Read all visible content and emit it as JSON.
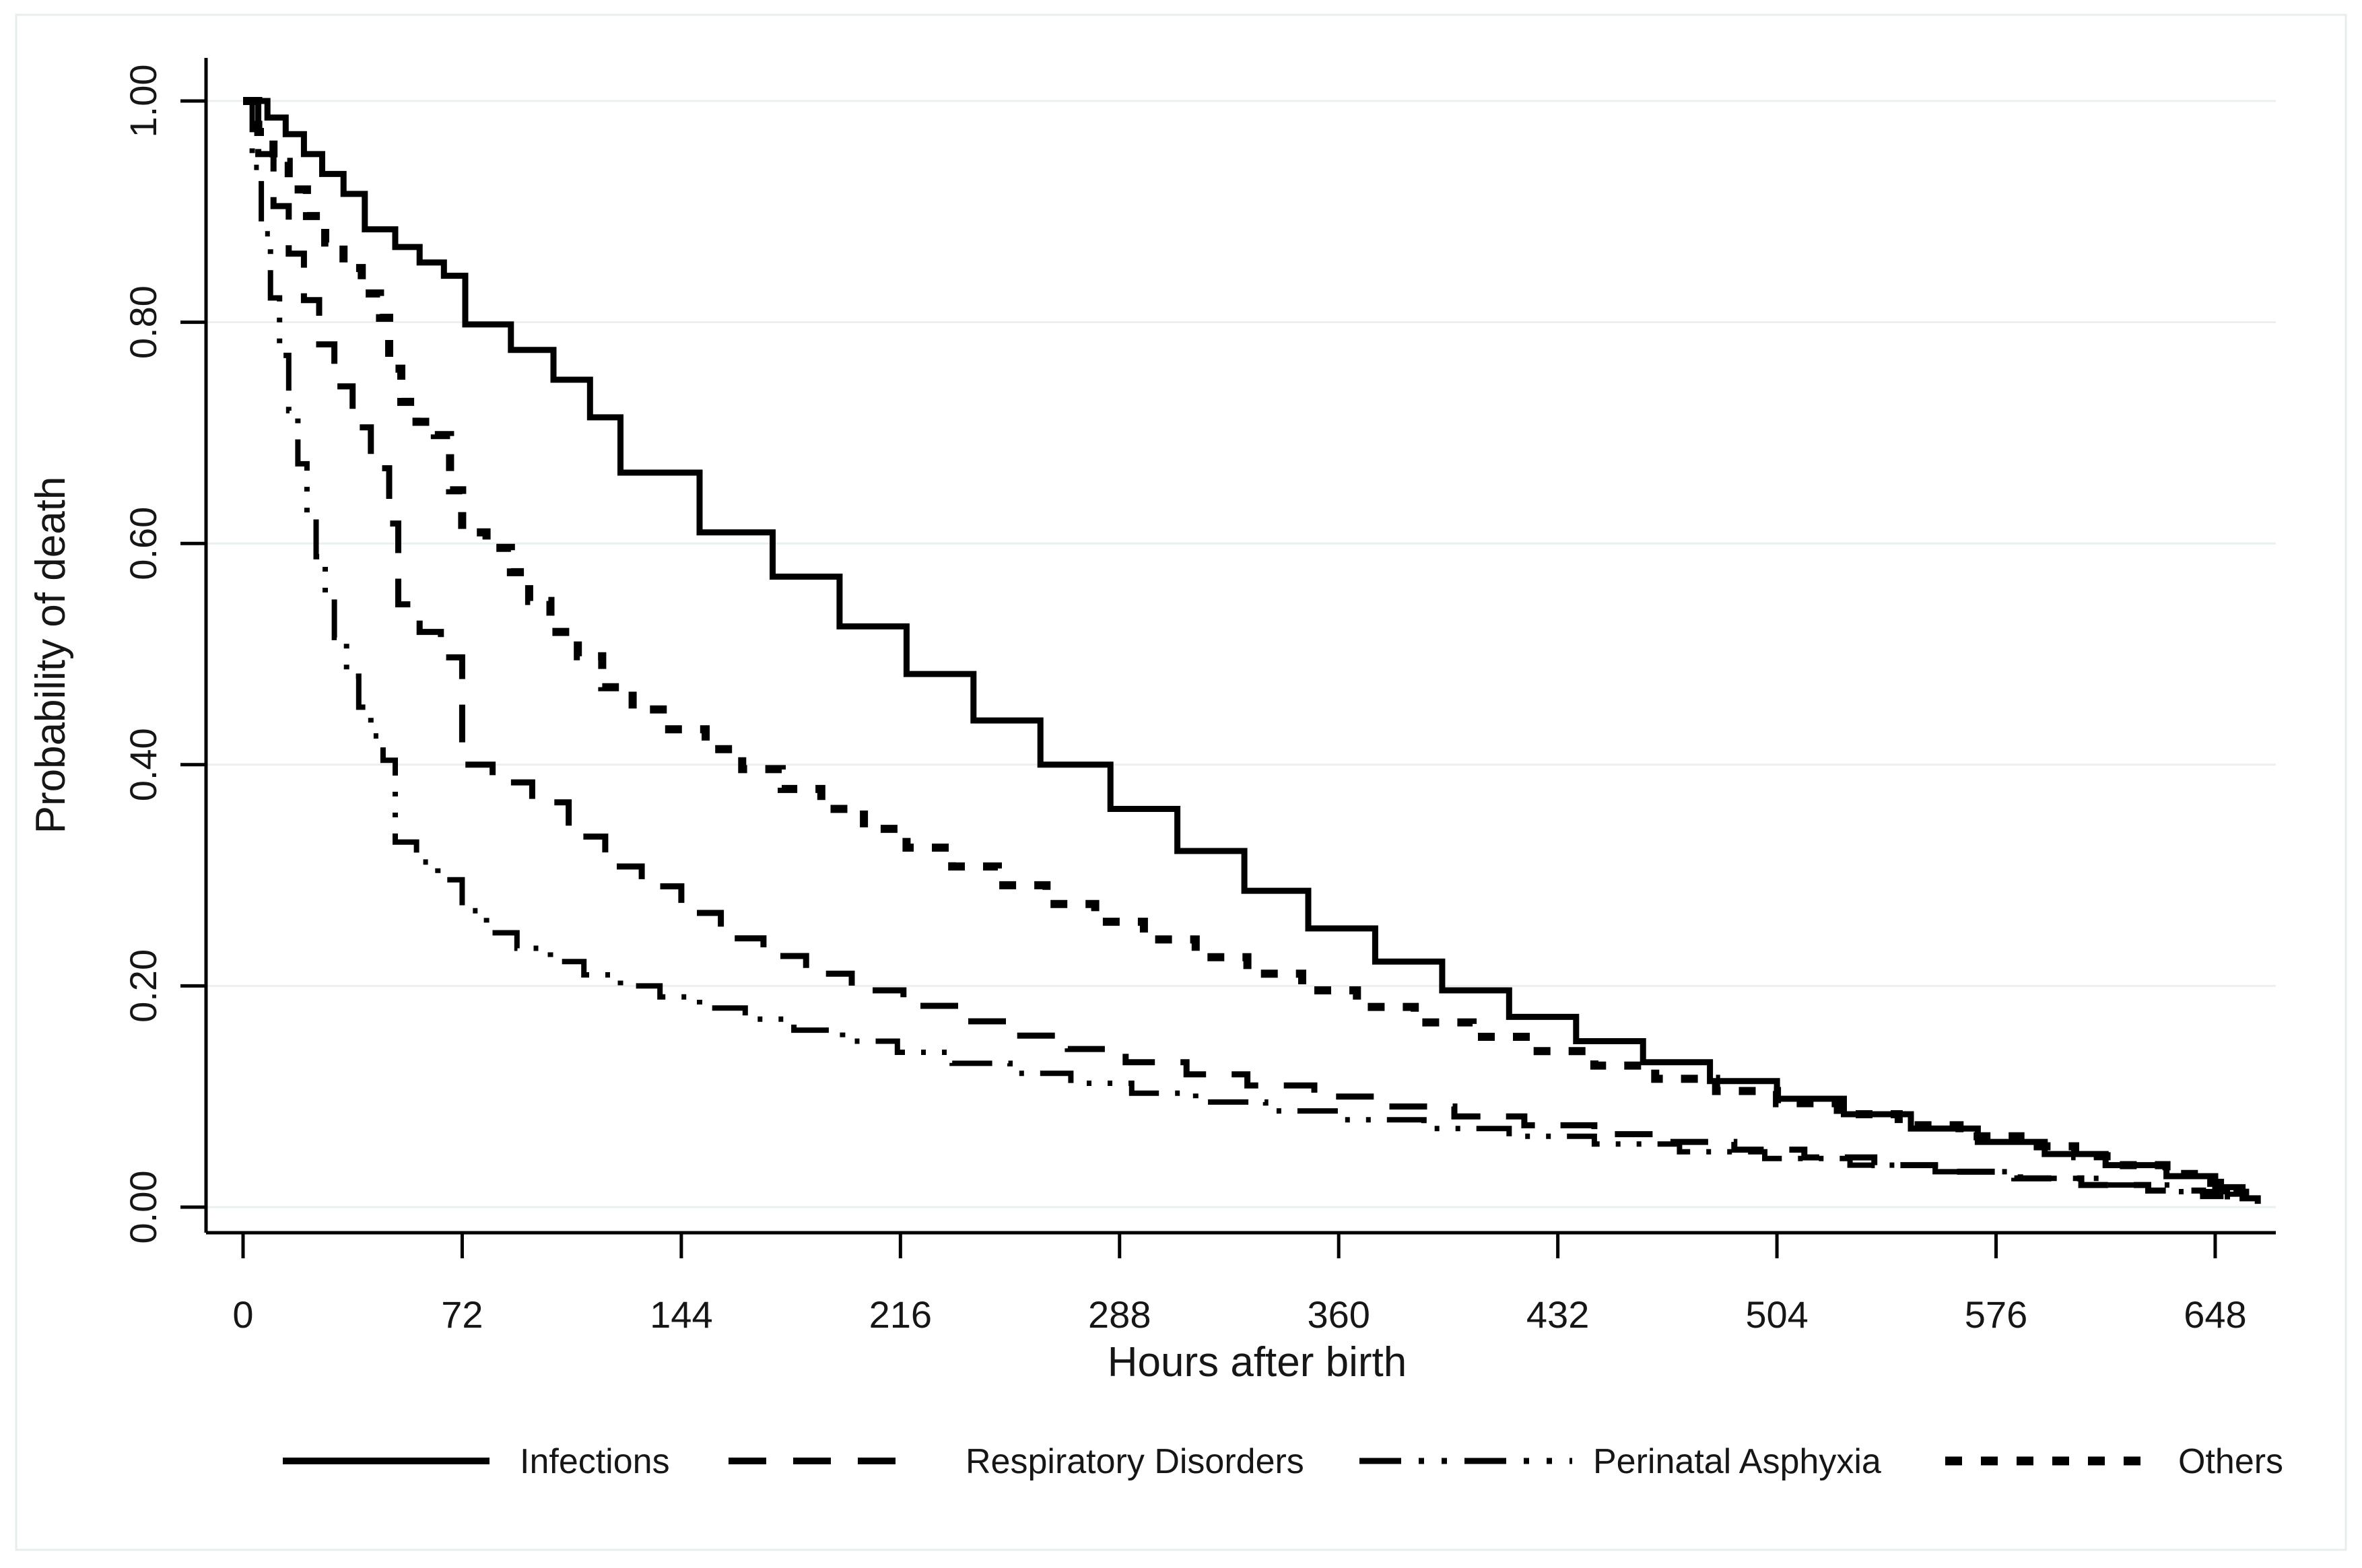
{
  "figure": {
    "background_color": "#ffffff",
    "border_color": "#e7edec"
  },
  "chart_data": {
    "type": "line",
    "subtype": "survival-step-curves",
    "title": "",
    "xlabel": "Hours after birth",
    "ylabel": "Probability of death",
    "x_ticks": [
      0,
      72,
      144,
      216,
      288,
      360,
      432,
      504,
      576,
      648
    ],
    "y_ticks": [
      {
        "label": "0.00",
        "value": 0.0
      },
      {
        "label": "0.20",
        "value": 0.2
      },
      {
        "label": "0.40",
        "value": 0.4
      },
      {
        "label": "0.60",
        "value": 0.6
      },
      {
        "label": "0.80",
        "value": 0.8
      },
      {
        "label": "1.00",
        "value": 1.0
      }
    ],
    "xlim": [
      0,
      668
    ],
    "ylim": [
      0.0,
      1.0
    ],
    "grid": "horizontal",
    "grid_color": "#e9f0ee",
    "line_color": "#000000",
    "legend_position": "bottom",
    "series": [
      {
        "name": "Infections",
        "pattern": "solid",
        "points": [
          [
            0,
            1.0
          ],
          [
            8,
            0.985
          ],
          [
            14,
            0.97
          ],
          [
            20,
            0.952
          ],
          [
            26,
            0.934
          ],
          [
            33,
            0.916
          ],
          [
            40,
            0.884
          ],
          [
            50,
            0.868
          ],
          [
            58,
            0.854
          ],
          [
            66,
            0.842
          ],
          [
            73,
            0.798
          ],
          [
            88,
            0.775
          ],
          [
            102,
            0.748
          ],
          [
            114,
            0.714
          ],
          [
            124,
            0.664
          ],
          [
            150,
            0.61
          ],
          [
            174,
            0.57
          ],
          [
            196,
            0.525
          ],
          [
            218,
            0.482
          ],
          [
            240,
            0.44
          ],
          [
            262,
            0.4
          ],
          [
            285,
            0.36
          ],
          [
            307,
            0.322
          ],
          [
            329,
            0.286
          ],
          [
            350,
            0.252
          ],
          [
            372,
            0.222
          ],
          [
            394,
            0.196
          ],
          [
            416,
            0.172
          ],
          [
            438,
            0.15
          ],
          [
            460,
            0.131
          ],
          [
            482,
            0.114
          ],
          [
            504,
            0.098
          ],
          [
            526,
            0.084
          ],
          [
            548,
            0.071
          ],
          [
            570,
            0.059
          ],
          [
            592,
            0.048
          ],
          [
            612,
            0.038
          ],
          [
            632,
            0.028
          ],
          [
            648,
            0.018
          ],
          [
            657,
            0.008
          ],
          [
            662,
            0.003
          ]
        ]
      },
      {
        "name": "Respiratory Disorders",
        "pattern": "long-dash",
        "points": [
          [
            0,
            1.0
          ],
          [
            5,
            0.952
          ],
          [
            10,
            0.905
          ],
          [
            15,
            0.862
          ],
          [
            20,
            0.82
          ],
          [
            25,
            0.78
          ],
          [
            30,
            0.742
          ],
          [
            36,
            0.705
          ],
          [
            42,
            0.668
          ],
          [
            48,
            0.618
          ],
          [
            51,
            0.545
          ],
          [
            58,
            0.52
          ],
          [
            65,
            0.497
          ],
          [
            72,
            0.4
          ],
          [
            82,
            0.384
          ],
          [
            95,
            0.366
          ],
          [
            107,
            0.335
          ],
          [
            119,
            0.308
          ],
          [
            131,
            0.29
          ],
          [
            144,
            0.266
          ],
          [
            157,
            0.243
          ],
          [
            171,
            0.227
          ],
          [
            185,
            0.211
          ],
          [
            200,
            0.196
          ],
          [
            217,
            0.182
          ],
          [
            235,
            0.168
          ],
          [
            253,
            0.155
          ],
          [
            271,
            0.143
          ],
          [
            290,
            0.131
          ],
          [
            310,
            0.12
          ],
          [
            330,
            0.11
          ],
          [
            352,
            0.1
          ],
          [
            375,
            0.091
          ],
          [
            398,
            0.082
          ],
          [
            421,
            0.074
          ],
          [
            444,
            0.066
          ],
          [
            467,
            0.059
          ],
          [
            490,
            0.052
          ],
          [
            513,
            0.045
          ],
          [
            536,
            0.038
          ],
          [
            559,
            0.032
          ],
          [
            582,
            0.026
          ],
          [
            604,
            0.02
          ],
          [
            626,
            0.015
          ],
          [
            644,
            0.01
          ],
          [
            656,
            0.004
          ]
        ]
      },
      {
        "name": "Perinatal Asphyxia",
        "pattern": "dash-dot-dot",
        "points": [
          [
            0,
            1.0
          ],
          [
            3,
            0.94
          ],
          [
            6,
            0.88
          ],
          [
            9,
            0.822
          ],
          [
            12,
            0.77
          ],
          [
            15,
            0.72
          ],
          [
            18,
            0.672
          ],
          [
            21,
            0.628
          ],
          [
            24,
            0.588
          ],
          [
            27,
            0.55
          ],
          [
            30,
            0.515
          ],
          [
            34,
            0.48
          ],
          [
            38,
            0.452
          ],
          [
            42,
            0.426
          ],
          [
            46,
            0.404
          ],
          [
            50,
            0.33
          ],
          [
            57,
            0.312
          ],
          [
            64,
            0.296
          ],
          [
            72,
            0.268
          ],
          [
            80,
            0.248
          ],
          [
            90,
            0.234
          ],
          [
            101,
            0.222
          ],
          [
            112,
            0.21
          ],
          [
            124,
            0.2
          ],
          [
            137,
            0.19
          ],
          [
            150,
            0.18
          ],
          [
            165,
            0.17
          ],
          [
            181,
            0.16
          ],
          [
            197,
            0.15
          ],
          [
            215,
            0.14
          ],
          [
            233,
            0.13
          ],
          [
            252,
            0.121
          ],
          [
            272,
            0.112
          ],
          [
            292,
            0.103
          ],
          [
            313,
            0.095
          ],
          [
            336,
            0.087
          ],
          [
            360,
            0.079
          ],
          [
            388,
            0.071
          ],
          [
            416,
            0.064
          ],
          [
            444,
            0.057
          ],
          [
            472,
            0.05
          ],
          [
            500,
            0.044
          ],
          [
            528,
            0.038
          ],
          [
            556,
            0.032
          ],
          [
            584,
            0.026
          ],
          [
            610,
            0.02
          ],
          [
            634,
            0.014
          ],
          [
            652,
            0.007
          ]
        ]
      },
      {
        "name": "Others",
        "pattern": "short-dash",
        "points": [
          [
            0,
            1.0
          ],
          [
            5,
            0.972
          ],
          [
            10,
            0.945
          ],
          [
            15,
            0.92
          ],
          [
            21,
            0.896
          ],
          [
            27,
            0.872
          ],
          [
            33,
            0.849
          ],
          [
            39,
            0.826
          ],
          [
            45,
            0.804
          ],
          [
            48,
            0.758
          ],
          [
            52,
            0.728
          ],
          [
            57,
            0.71
          ],
          [
            63,
            0.698
          ],
          [
            68,
            0.648
          ],
          [
            72,
            0.61
          ],
          [
            80,
            0.596
          ],
          [
            88,
            0.574
          ],
          [
            94,
            0.548
          ],
          [
            101,
            0.52
          ],
          [
            110,
            0.498
          ],
          [
            118,
            0.47
          ],
          [
            128,
            0.45
          ],
          [
            140,
            0.432
          ],
          [
            152,
            0.414
          ],
          [
            164,
            0.396
          ],
          [
            177,
            0.378
          ],
          [
            190,
            0.36
          ],
          [
            204,
            0.342
          ],
          [
            218,
            0.325
          ],
          [
            233,
            0.308
          ],
          [
            248,
            0.291
          ],
          [
            264,
            0.274
          ],
          [
            280,
            0.258
          ],
          [
            296,
            0.242
          ],
          [
            313,
            0.226
          ],
          [
            330,
            0.211
          ],
          [
            348,
            0.196
          ],
          [
            366,
            0.181
          ],
          [
            385,
            0.167
          ],
          [
            404,
            0.154
          ],
          [
            424,
            0.141
          ],
          [
            444,
            0.128
          ],
          [
            464,
            0.116
          ],
          [
            484,
            0.105
          ],
          [
            504,
            0.094
          ],
          [
            524,
            0.084
          ],
          [
            544,
            0.074
          ],
          [
            564,
            0.064
          ],
          [
            584,
            0.055
          ],
          [
            602,
            0.046
          ],
          [
            618,
            0.038
          ],
          [
            632,
            0.03
          ],
          [
            644,
            0.022
          ],
          [
            654,
            0.013
          ],
          [
            660,
            0.006
          ]
        ]
      }
    ]
  }
}
